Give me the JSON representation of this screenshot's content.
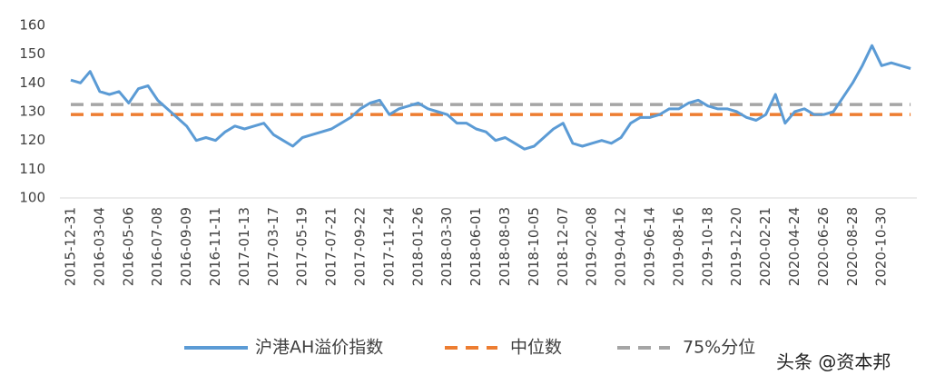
{
  "chart_data": {
    "type": "line",
    "categories": [
      "2015-12-31",
      null,
      null,
      "2016-03-04",
      null,
      null,
      "2016-05-06",
      null,
      null,
      "2016-07-08",
      null,
      null,
      "2016-09-09",
      null,
      null,
      "2016-11-11",
      null,
      null,
      "2017-01-13",
      null,
      null,
      "2017-03-17",
      null,
      null,
      "2017-05-19",
      null,
      null,
      "2017-07-21",
      null,
      null,
      "2017-09-22",
      null,
      null,
      "2017-11-24",
      null,
      null,
      "2018-01-26",
      null,
      null,
      "2018-03-30",
      null,
      null,
      "2018-06-01",
      null,
      null,
      "2018-08-03",
      null,
      null,
      "2018-10-05",
      null,
      null,
      "2018-12-07",
      null,
      null,
      "2019-02-08",
      null,
      null,
      "2019-04-12",
      null,
      null,
      "2019-06-14",
      null,
      null,
      "2019-08-16",
      null,
      null,
      "2019-10-18",
      null,
      null,
      "2019-12-20",
      null,
      null,
      "2020-02-21",
      null,
      null,
      "2020-04-24",
      null,
      null,
      "2020-06-26",
      null,
      null,
      "2020-08-28",
      null,
      null,
      "2020-10-30",
      null,
      null,
      null
    ],
    "series": [
      {
        "name": "沪港AH溢价指数",
        "color": "#5b9bd5",
        "dashed": false,
        "values": [
          141,
          140,
          144,
          137,
          136,
          137,
          133,
          138,
          139,
          134,
          131,
          128,
          125,
          120,
          121,
          120,
          123,
          125,
          124,
          125,
          126,
          122,
          120,
          118,
          121,
          122,
          123,
          124,
          126,
          128,
          131,
          133,
          134,
          129,
          131,
          132,
          133,
          131,
          130,
          129,
          126,
          126,
          124,
          123,
          120,
          121,
          119,
          117,
          118,
          121,
          124,
          126,
          119,
          118,
          119,
          120,
          119,
          121,
          126,
          128,
          128,
          129,
          131,
          131,
          133,
          134,
          132,
          131,
          131,
          130,
          128,
          127,
          129,
          136,
          126,
          130,
          131,
          129,
          129,
          130,
          135,
          140,
          146,
          153,
          146,
          147,
          146,
          145
        ]
      },
      {
        "name": "中位数",
        "color": "#ed7d31",
        "dashed": true,
        "values": [
          129,
          129,
          129,
          129,
          129,
          129,
          129,
          129,
          129,
          129,
          129,
          129,
          129,
          129,
          129,
          129,
          129,
          129,
          129,
          129,
          129,
          129,
          129,
          129,
          129,
          129,
          129,
          129,
          129,
          129,
          129,
          129,
          129,
          129,
          129,
          129,
          129,
          129,
          129,
          129,
          129,
          129,
          129,
          129,
          129,
          129,
          129,
          129,
          129,
          129,
          129,
          129,
          129,
          129,
          129,
          129,
          129,
          129,
          129,
          129,
          129,
          129,
          129,
          129,
          129,
          129,
          129,
          129,
          129,
          129,
          129,
          129,
          129,
          129,
          129,
          129,
          129,
          129,
          129,
          129,
          129,
          129,
          129,
          129,
          129,
          129,
          129,
          129
        ]
      },
      {
        "name": "75%分位",
        "color": "#a5a5a5",
        "dashed": true,
        "values": [
          132.5,
          132.5,
          132.5,
          132.5,
          132.5,
          132.5,
          132.5,
          132.5,
          132.5,
          132.5,
          132.5,
          132.5,
          132.5,
          132.5,
          132.5,
          132.5,
          132.5,
          132.5,
          132.5,
          132.5,
          132.5,
          132.5,
          132.5,
          132.5,
          132.5,
          132.5,
          132.5,
          132.5,
          132.5,
          132.5,
          132.5,
          132.5,
          132.5,
          132.5,
          132.5,
          132.5,
          132.5,
          132.5,
          132.5,
          132.5,
          132.5,
          132.5,
          132.5,
          132.5,
          132.5,
          132.5,
          132.5,
          132.5,
          132.5,
          132.5,
          132.5,
          132.5,
          132.5,
          132.5,
          132.5,
          132.5,
          132.5,
          132.5,
          132.5,
          132.5,
          132.5,
          132.5,
          132.5,
          132.5,
          132.5,
          132.5,
          132.5,
          132.5,
          132.5,
          132.5,
          132.5,
          132.5,
          132.5,
          132.5,
          132.5,
          132.5,
          132.5,
          132.5,
          132.5,
          132.5,
          132.5,
          132.5,
          132.5,
          132.5,
          132.5,
          132.5,
          132.5,
          132.5
        ]
      }
    ],
    "ylim": [
      100,
      160
    ],
    "yticks": [
      100,
      110,
      120,
      130,
      140,
      150,
      160
    ],
    "grid": false,
    "legend": "bottom",
    "watermark": "头条 @资本邦"
  }
}
